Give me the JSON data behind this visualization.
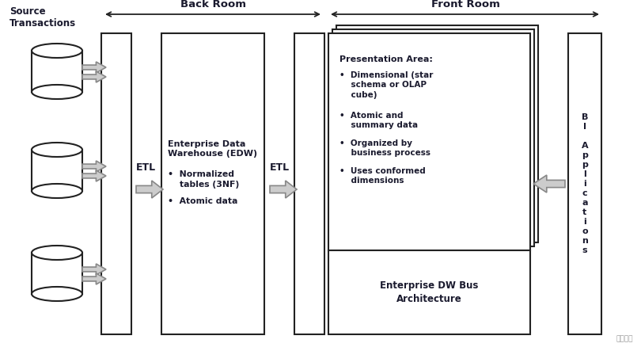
{
  "bg_color": "#ffffff",
  "text_color": "#1a1a2e",
  "accent_color": "#2b2b5a",
  "border_color": "#222222",
  "arrow_fc": "#cccccc",
  "arrow_ec": "#888888",
  "header_back_room": "Back Room",
  "header_front_room": "Front Room",
  "header_source": "Source\nTransactions",
  "etl_label": "ETL",
  "edw_title": "Enterprise Data\nWarehouse (EDW)",
  "edw_b1": "•  Normalized\n    tables (3NF)",
  "edw_b2": "•  Atomic data",
  "pres_title": "Presentation Area:",
  "pres_b1": "•  Dimensional (star\n    schema or OLAP\n    cube)",
  "pres_b2": "•  Atomic and\n    summary data",
  "pres_b3": "•  Organized by\n    business process",
  "pres_b4": "•  Uses conformed\n    dimensions",
  "bus_label": "Enterprise DW Bus\nArchitecture",
  "bi_label": "B\nI\n \nA\np\np\nl\ni\nc\na\nt\ni\no\nn\ns",
  "watermark_text": "创新互联"
}
